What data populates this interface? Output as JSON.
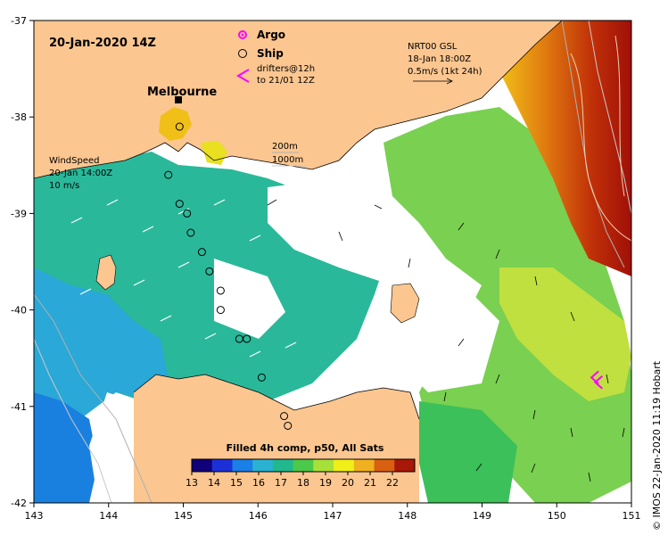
{
  "title": "20-Jan-2020 14Z",
  "place_label": "Melbourne",
  "legend": {
    "argo_label": "Argo",
    "ship_label": "Ship",
    "drifters_label_1": "drifters@12h",
    "drifters_label_2": "to 21/01 12Z",
    "argo_color": "#ff00ff",
    "drifter_color": "#ff00ff"
  },
  "current_key": {
    "line1": "NRT00 GSL",
    "line2": "18-Jan 18:00Z",
    "line3": "0.5m/s (1kt 24h)"
  },
  "wind_key": {
    "line1": "WindSpeed",
    "line2": "20-Jan 14:00Z",
    "line3": "10 m/s"
  },
  "depth_key": {
    "shallow": "200m",
    "deep": "1000m"
  },
  "colorbar": {
    "title": "Filled 4h comp, p50, All Sats",
    "ticks": [
      "13",
      "14",
      "15",
      "16",
      "17",
      "18",
      "19",
      "20",
      "21",
      "22"
    ],
    "min": 13,
    "max": 23,
    "colors": [
      "#10007a",
      "#1c30d8",
      "#1a7fe6",
      "#2ab2d2",
      "#22b88e",
      "#4cc84a",
      "#a8e03a",
      "#f0f018",
      "#f0b020",
      "#d86010",
      "#a81808"
    ]
  },
  "credit": "© IMOS 22-Jan-2020 11:19 Hobart",
  "axes": {
    "x_ticks": [
      "143",
      "144",
      "145",
      "146",
      "147",
      "148",
      "149",
      "150",
      "151"
    ],
    "y_ticks": [
      "-37",
      "-38",
      "-39",
      "-40",
      "-41",
      "-42"
    ],
    "lon_range": [
      143,
      151
    ],
    "lat_range": [
      -42,
      -37
    ]
  },
  "colors": {
    "land": "#fbc690",
    "no_data": "#ffffff",
    "east_warm": "#c8400a"
  },
  "ship_track": [
    [
      144.95,
      -38.1
    ],
    [
      144.8,
      -38.6
    ],
    [
      144.95,
      -38.9
    ],
    [
      145.05,
      -39.0
    ],
    [
      145.1,
      -39.2
    ],
    [
      145.25,
      -39.4
    ],
    [
      145.35,
      -39.6
    ],
    [
      145.5,
      -39.8
    ],
    [
      145.5,
      -40.0
    ],
    [
      145.75,
      -40.3
    ],
    [
      145.85,
      -40.3
    ],
    [
      146.05,
      -40.7
    ],
    [
      146.35,
      -41.1
    ],
    [
      146.4,
      -41.2
    ]
  ],
  "argo_floats": [],
  "drifter_positions": [
    [
      150.5,
      -40.7
    ],
    [
      150.55,
      -40.75
    ]
  ]
}
